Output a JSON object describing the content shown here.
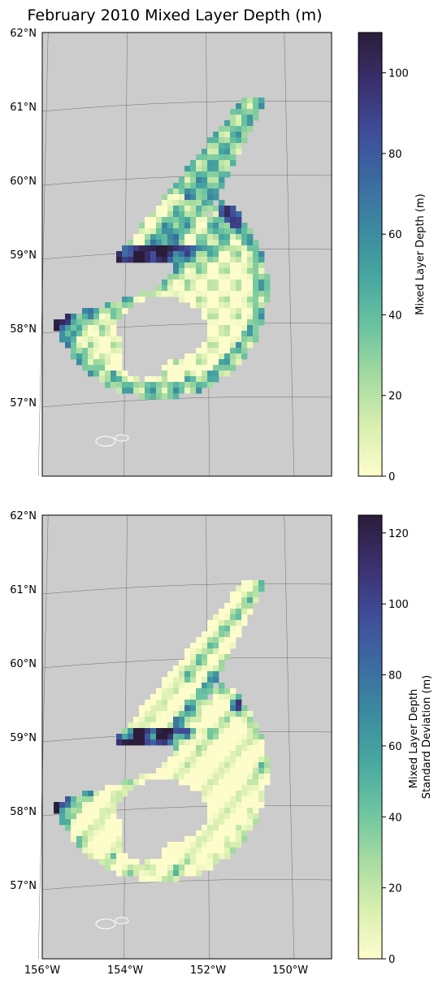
{
  "title": "February 2010 Mixed Layer Depth (m)",
  "colors": {
    "land": "#cccccc",
    "gridline": "#555555",
    "colormap": [
      "#fdfdcc",
      "#d9efb0",
      "#a6dba0",
      "#6cc4a0",
      "#48a8a0",
      "#3b8aa0",
      "#3c6aa2",
      "#3f4c98",
      "#3b2f6e",
      "#2a1d3a"
    ]
  },
  "longitude_ticks": [
    "156°W",
    "154°W",
    "152°W",
    "150°W"
  ],
  "latitude_ticks": [
    "62°N",
    "61°N",
    "60°N",
    "59°N",
    "58°N",
    "57°N"
  ],
  "panels": [
    {
      "field": "mean",
      "colorbar_label_lines": [
        "Mixed Layer Depth (m)"
      ],
      "colorbar_range": [
        0,
        110
      ],
      "colorbar_ticks": [
        "0",
        "20",
        "40",
        "60",
        "80",
        "100"
      ]
    },
    {
      "field": "std",
      "colorbar_label_lines": [
        "Mixed Layer Depth",
        "Standard Deviation (m)"
      ],
      "colorbar_range": [
        0,
        125
      ],
      "colorbar_ticks": [
        "0",
        "20",
        "40",
        "60",
        "80",
        "100",
        "120"
      ]
    }
  ]
}
